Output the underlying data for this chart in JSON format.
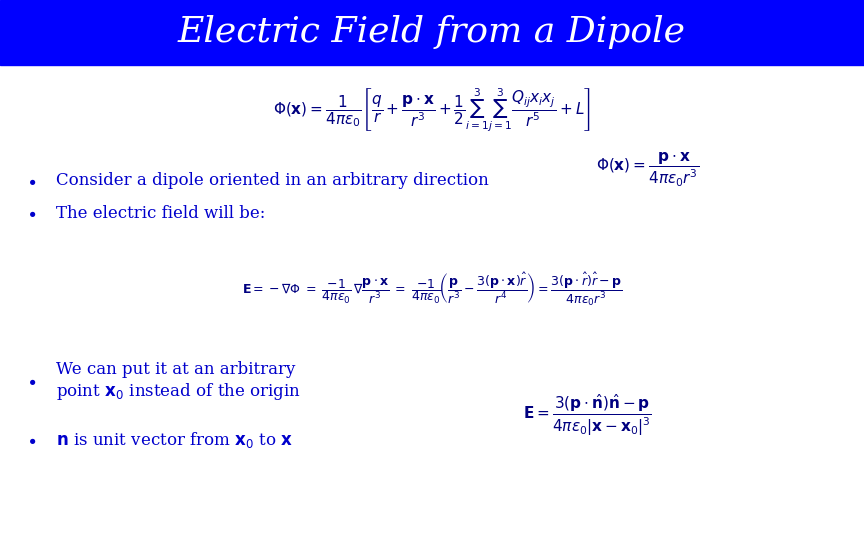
{
  "title": "Electric Field from a Dipole",
  "title_bg": "#0000FF",
  "title_fg": "#FFFFFF",
  "slide_bg": "#FFFFFF",
  "bullet_color": "#0000CC",
  "math_color": "#000080",
  "bullet1": "Consider a dipole oriented in an arbitrary direction",
  "bullet2": "The electric field will be:",
  "eq_top": "$\\Phi(\\mathbf{x}) = \\dfrac{1}{4\\pi\\varepsilon_0}\\left[\\dfrac{q}{r} + \\dfrac{\\mathbf{p}\\cdot\\mathbf{x}}{r^3} + \\dfrac{1}{2}\\sum_{i=1}^{3}\\sum_{j=1}^{3}\\dfrac{Q_{ij}x_i x_j}{r^5} + L\\right]$",
  "eq_dipole": "$\\Phi(\\mathbf{x}) = \\dfrac{\\mathbf{p}\\cdot\\mathbf{x}}{4\\pi\\varepsilon_0 r^3}$",
  "eq_field": "$\\mathbf{E} = -\\nabla\\Phi \\;=\\; \\dfrac{-1}{4\\pi\\varepsilon_0}\\,\\nabla\\dfrac{\\mathbf{p}\\cdot\\mathbf{x}}{r^3} \\;=\\; \\dfrac{-1}{4\\pi\\varepsilon_0}\\!\\left(\\dfrac{\\mathbf{p}}{r^3} - \\dfrac{3(\\mathbf{p}\\cdot\\mathbf{x})\\hat{r}}{r^4}\\right) =\\dfrac{3(\\mathbf{p}\\cdot\\hat{r})\\hat{r} - \\mathbf{p}}{4\\pi\\varepsilon_0 r^3}$",
  "eq_general": "$\\mathbf{E} = \\dfrac{3(\\mathbf{p}\\cdot\\hat{\\mathbf{n}})\\hat{\\mathbf{n}} - \\mathbf{p}}{4\\pi\\varepsilon_0|\\mathbf{x}-\\mathbf{x}_0|^3}$",
  "bullet3a": "We can put it at an arbitrary",
  "bullet3b": "point $\\mathbf{x}_0$ instead of the origin",
  "bullet4": "$\\mathbf{n}$ is unit vector from $\\mathbf{x}_0$ to $\\mathbf{x}$"
}
